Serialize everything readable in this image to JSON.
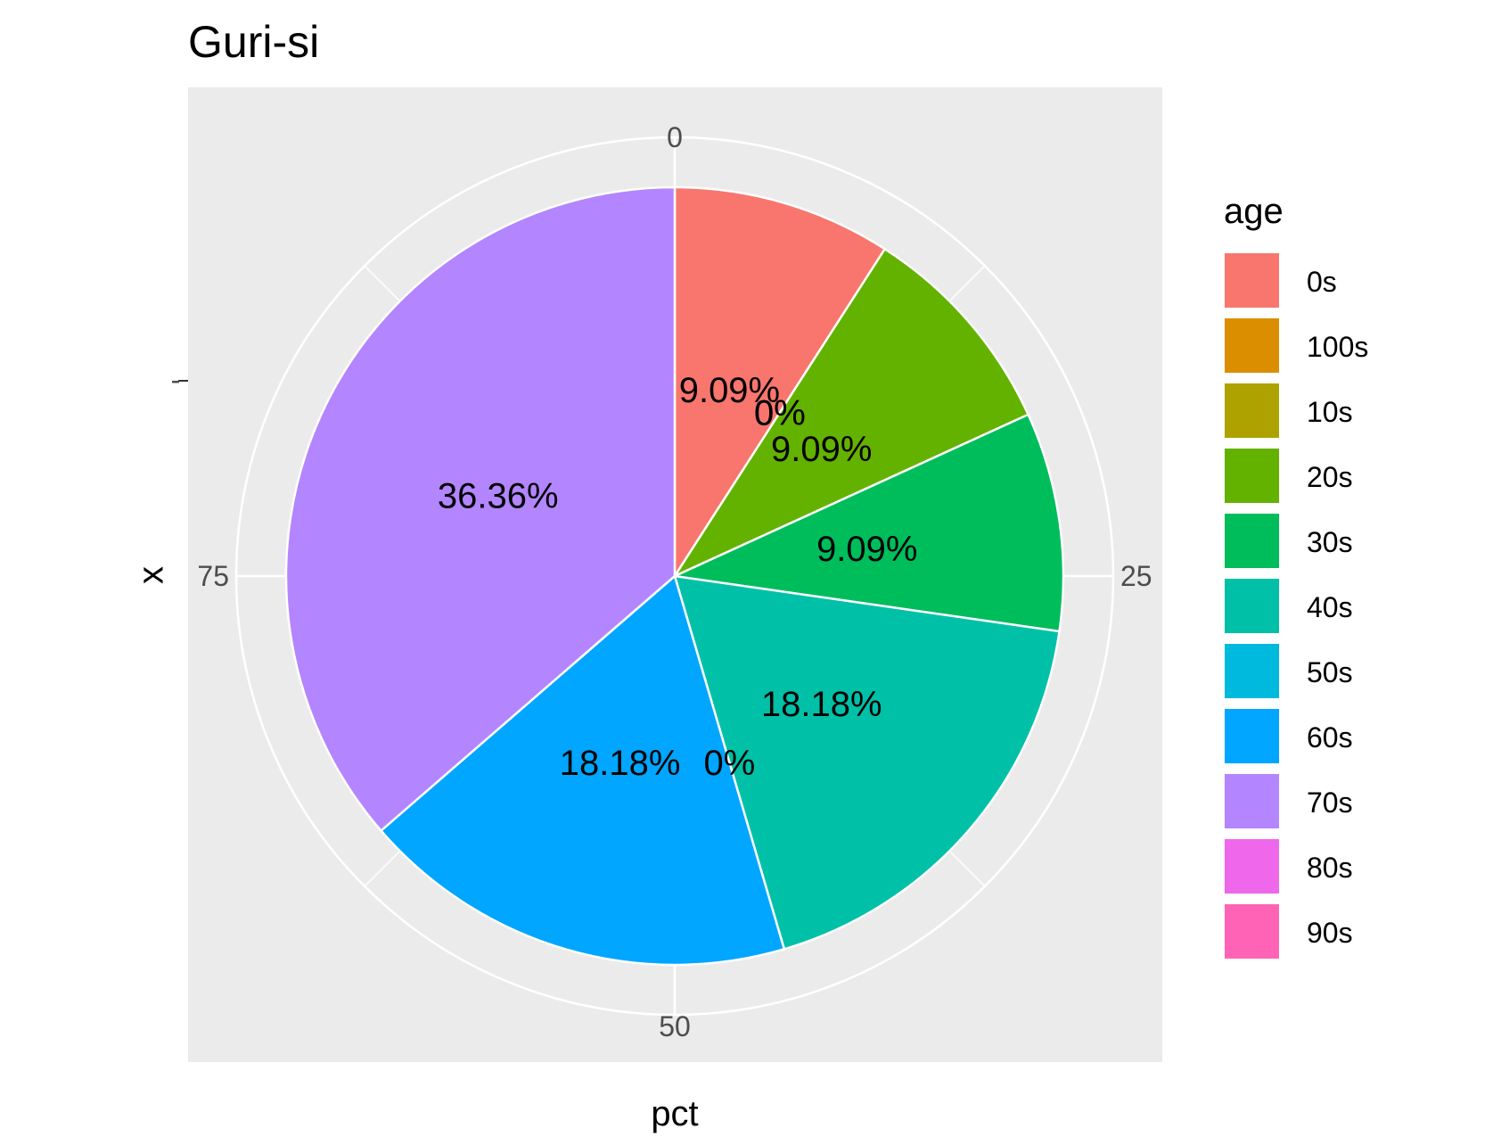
{
  "chart_data": {
    "type": "pie",
    "title": "Guri-si",
    "xlabel": "pct",
    "ylabel": "x",
    "y_tick_label": "-",
    "angle_axis_range": [
      0,
      100
    ],
    "angle_ticks": [
      "0",
      "25",
      "50",
      "75"
    ],
    "angle_tick_values": [
      0,
      25,
      50,
      75
    ],
    "direction": "clockwise",
    "slices": [
      {
        "label": "0s",
        "value": 9.09,
        "display": "9.09%",
        "color": "#F8766D"
      },
      {
        "label": "100s",
        "value": 0,
        "display": "0%",
        "color": "#DB8E00"
      },
      {
        "label": "10s",
        "value": 0,
        "display": "0%",
        "color": "#AEA200"
      },
      {
        "label": "20s",
        "value": 9.09,
        "display": "9.09%",
        "color": "#64B200"
      },
      {
        "label": "30s",
        "value": 9.09,
        "display": "9.09%",
        "color": "#00BD5C"
      },
      {
        "label": "40s",
        "value": 18.18,
        "display": "18.18%",
        "color": "#00C1A7"
      },
      {
        "label": "50s",
        "value": 0,
        "display": "0%",
        "color": "#00BADE"
      },
      {
        "label": "60s",
        "value": 18.18,
        "display": "18.18%",
        "color": "#00A6FF"
      },
      {
        "label": "70s",
        "value": 36.36,
        "display": "36.36%",
        "color": "#B385FF"
      },
      {
        "label": "80s",
        "value": 0,
        "display": "",
        "color": "#EF67EB"
      },
      {
        "label": "90s",
        "value": 0,
        "display": "",
        "color": "#FF63B6"
      }
    ],
    "legend": {
      "title": "age",
      "position": "right"
    },
    "panel_background": "#EBEBEB",
    "grid_color": "#FFFFFF",
    "grid": true
  }
}
